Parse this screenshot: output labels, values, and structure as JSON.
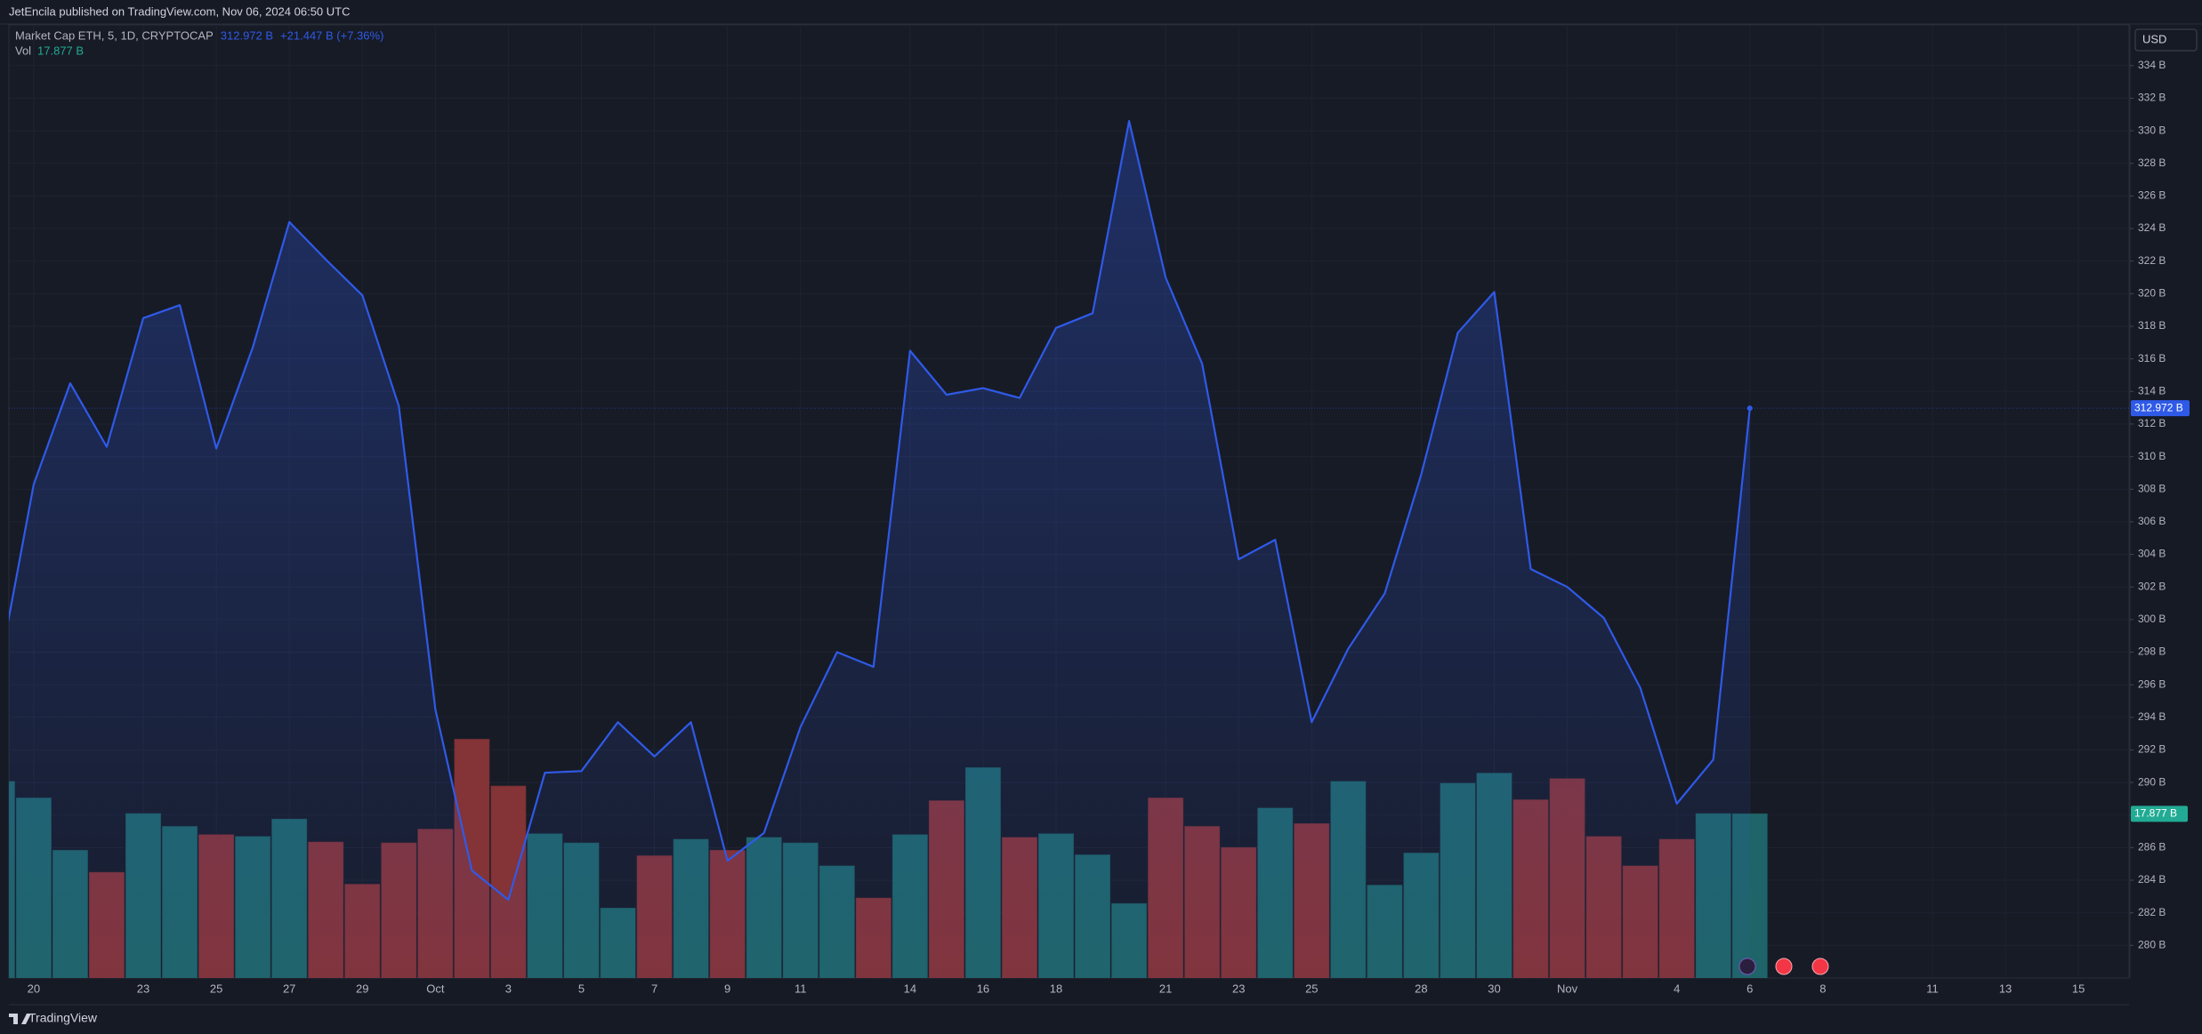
{
  "header": {
    "attribution": "JetEncila published on TradingView.com, Nov 06, 2024 06:50 UTC"
  },
  "footer": {
    "brand": "TradingView"
  },
  "chart_data": {
    "type": "area",
    "currency": "USD",
    "change": "+21.447 B (+7.36%)",
    "grid": true,
    "categories": [
      null,
      "20",
      null,
      null,
      "23",
      null,
      "25",
      null,
      "27",
      null,
      "29",
      null,
      "Oct",
      null,
      "3",
      null,
      "5",
      null,
      "7",
      null,
      "9",
      null,
      "11",
      null,
      null,
      "14",
      null,
      "16",
      null,
      "18",
      null,
      null,
      "21",
      null,
      "23",
      null,
      "25",
      null,
      null,
      "28",
      null,
      "30",
      null,
      "Nov",
      null,
      null,
      "4",
      null,
      "6",
      null,
      "8",
      null,
      null,
      "11",
      null,
      "13",
      null,
      "15"
    ],
    "ylim": [
      278,
      336.5
    ],
    "yticks": [
      {
        "value": 280,
        "label": "280 B"
      },
      {
        "value": 282,
        "label": "282 B"
      },
      {
        "value": 284,
        "label": "284 B"
      },
      {
        "value": 286,
        "label": "286 B"
      },
      {
        "value": 288,
        "label": "288 B"
      },
      {
        "value": 290,
        "label": "290 B"
      },
      {
        "value": 292,
        "label": "292 B"
      },
      {
        "value": 294,
        "label": "294 B"
      },
      {
        "value": 296,
        "label": "296 B"
      },
      {
        "value": 298,
        "label": "298 B"
      },
      {
        "value": 300,
        "label": "300 B"
      },
      {
        "value": 302,
        "label": "302 B"
      },
      {
        "value": 304,
        "label": "304 B"
      },
      {
        "value": 306,
        "label": "306 B"
      },
      {
        "value": 308,
        "label": "308 B"
      },
      {
        "value": 310,
        "label": "310 B"
      },
      {
        "value": 312,
        "label": "312 B"
      },
      {
        "value": 314,
        "label": "314 B"
      },
      {
        "value": 316,
        "label": "316 B"
      },
      {
        "value": 318,
        "label": "318 B"
      },
      {
        "value": 320,
        "label": "320 B"
      },
      {
        "value": 322,
        "label": "322 B"
      },
      {
        "value": 324,
        "label": "324 B"
      },
      {
        "value": 326,
        "label": "326 B"
      },
      {
        "value": 328,
        "label": "328 B"
      },
      {
        "value": 330,
        "label": "330 B"
      },
      {
        "value": 332,
        "label": "332 B"
      },
      {
        "value": 334,
        "label": "334 B"
      }
    ],
    "series": [
      {
        "name": "Market Cap ETH, 5, 1D, CRYPTOCAP",
        "color": "#2f5ae8",
        "last_label": "312.972 B",
        "values": [
          296.3,
          308.3,
          314.5,
          310.6,
          318.5,
          319.3,
          310.5,
          316.7,
          324.4,
          322.1,
          319.9,
          313.1,
          294.5,
          284.6,
          282.8,
          290.6,
          290.7,
          293.7,
          291.6,
          293.7,
          285.2,
          286.9,
          293.4,
          298.0,
          297.1,
          316.5,
          313.8,
          314.2,
          313.6,
          317.9,
          318.8,
          330.6,
          321.0,
          315.7,
          303.7,
          304.9,
          293.7,
          298.2,
          301.6,
          308.9,
          317.6,
          320.1,
          303.1,
          302.0,
          300.1,
          295.8,
          288.7,
          291.4,
          312.972,
          null,
          null,
          null,
          null,
          null,
          null,
          null,
          null,
          null
        ]
      },
      {
        "name": "Vol",
        "type": "bar",
        "color": "#22ab94",
        "last_label": "17.877 B",
        "ylim": [
          0,
          103.8
        ],
        "values": [
          21.4,
          19.6,
          13.9,
          11.5,
          17.9,
          16.5,
          15.6,
          15.4,
          17.3,
          14.8,
          10.2,
          14.7,
          16.2,
          26.0,
          20.9,
          15.7,
          14.7,
          7.6,
          13.3,
          15.1,
          13.9,
          15.3,
          14.7,
          12.2,
          8.7,
          15.6,
          19.3,
          22.9,
          15.3,
          15.7,
          13.4,
          8.1,
          19.6,
          16.5,
          14.2,
          18.5,
          16.8,
          21.4,
          10.1,
          13.6,
          21.2,
          22.3,
          19.4,
          21.7,
          15.4,
          12.2,
          15.1,
          17.9,
          17.877,
          null,
          null,
          null,
          null,
          null,
          null,
          null,
          null,
          null
        ],
        "colors": [
          "#1f6468",
          "#1f6468",
          "#1f6468",
          "#843337",
          "#1f6468",
          "#1f6468",
          "#843337",
          "#1f6468",
          "#1f6468",
          "#843337",
          "#843337",
          "#843337",
          "#843337",
          "#843337",
          "#843337",
          "#1f6468",
          "#1f6468",
          "#1f6468",
          "#843337",
          "#1f6468",
          "#843337",
          "#1f6468",
          "#1f6468",
          "#1f6468",
          "#843337",
          "#1f6468",
          "#843337",
          "#1f6468",
          "#843337",
          "#1f6468",
          "#1f6468",
          "#1f6468",
          "#843337",
          "#843337",
          "#843337",
          "#1f6468",
          "#843337",
          "#1f6468",
          "#1f6468",
          "#1f6468",
          "#1f6468",
          "#1f6468",
          "#843337",
          "#843337",
          "#843337",
          "#843337",
          "#843337",
          "#1f6468",
          "#1f6468",
          null,
          null,
          null,
          null,
          null,
          null,
          null,
          null,
          null
        ]
      }
    ]
  }
}
